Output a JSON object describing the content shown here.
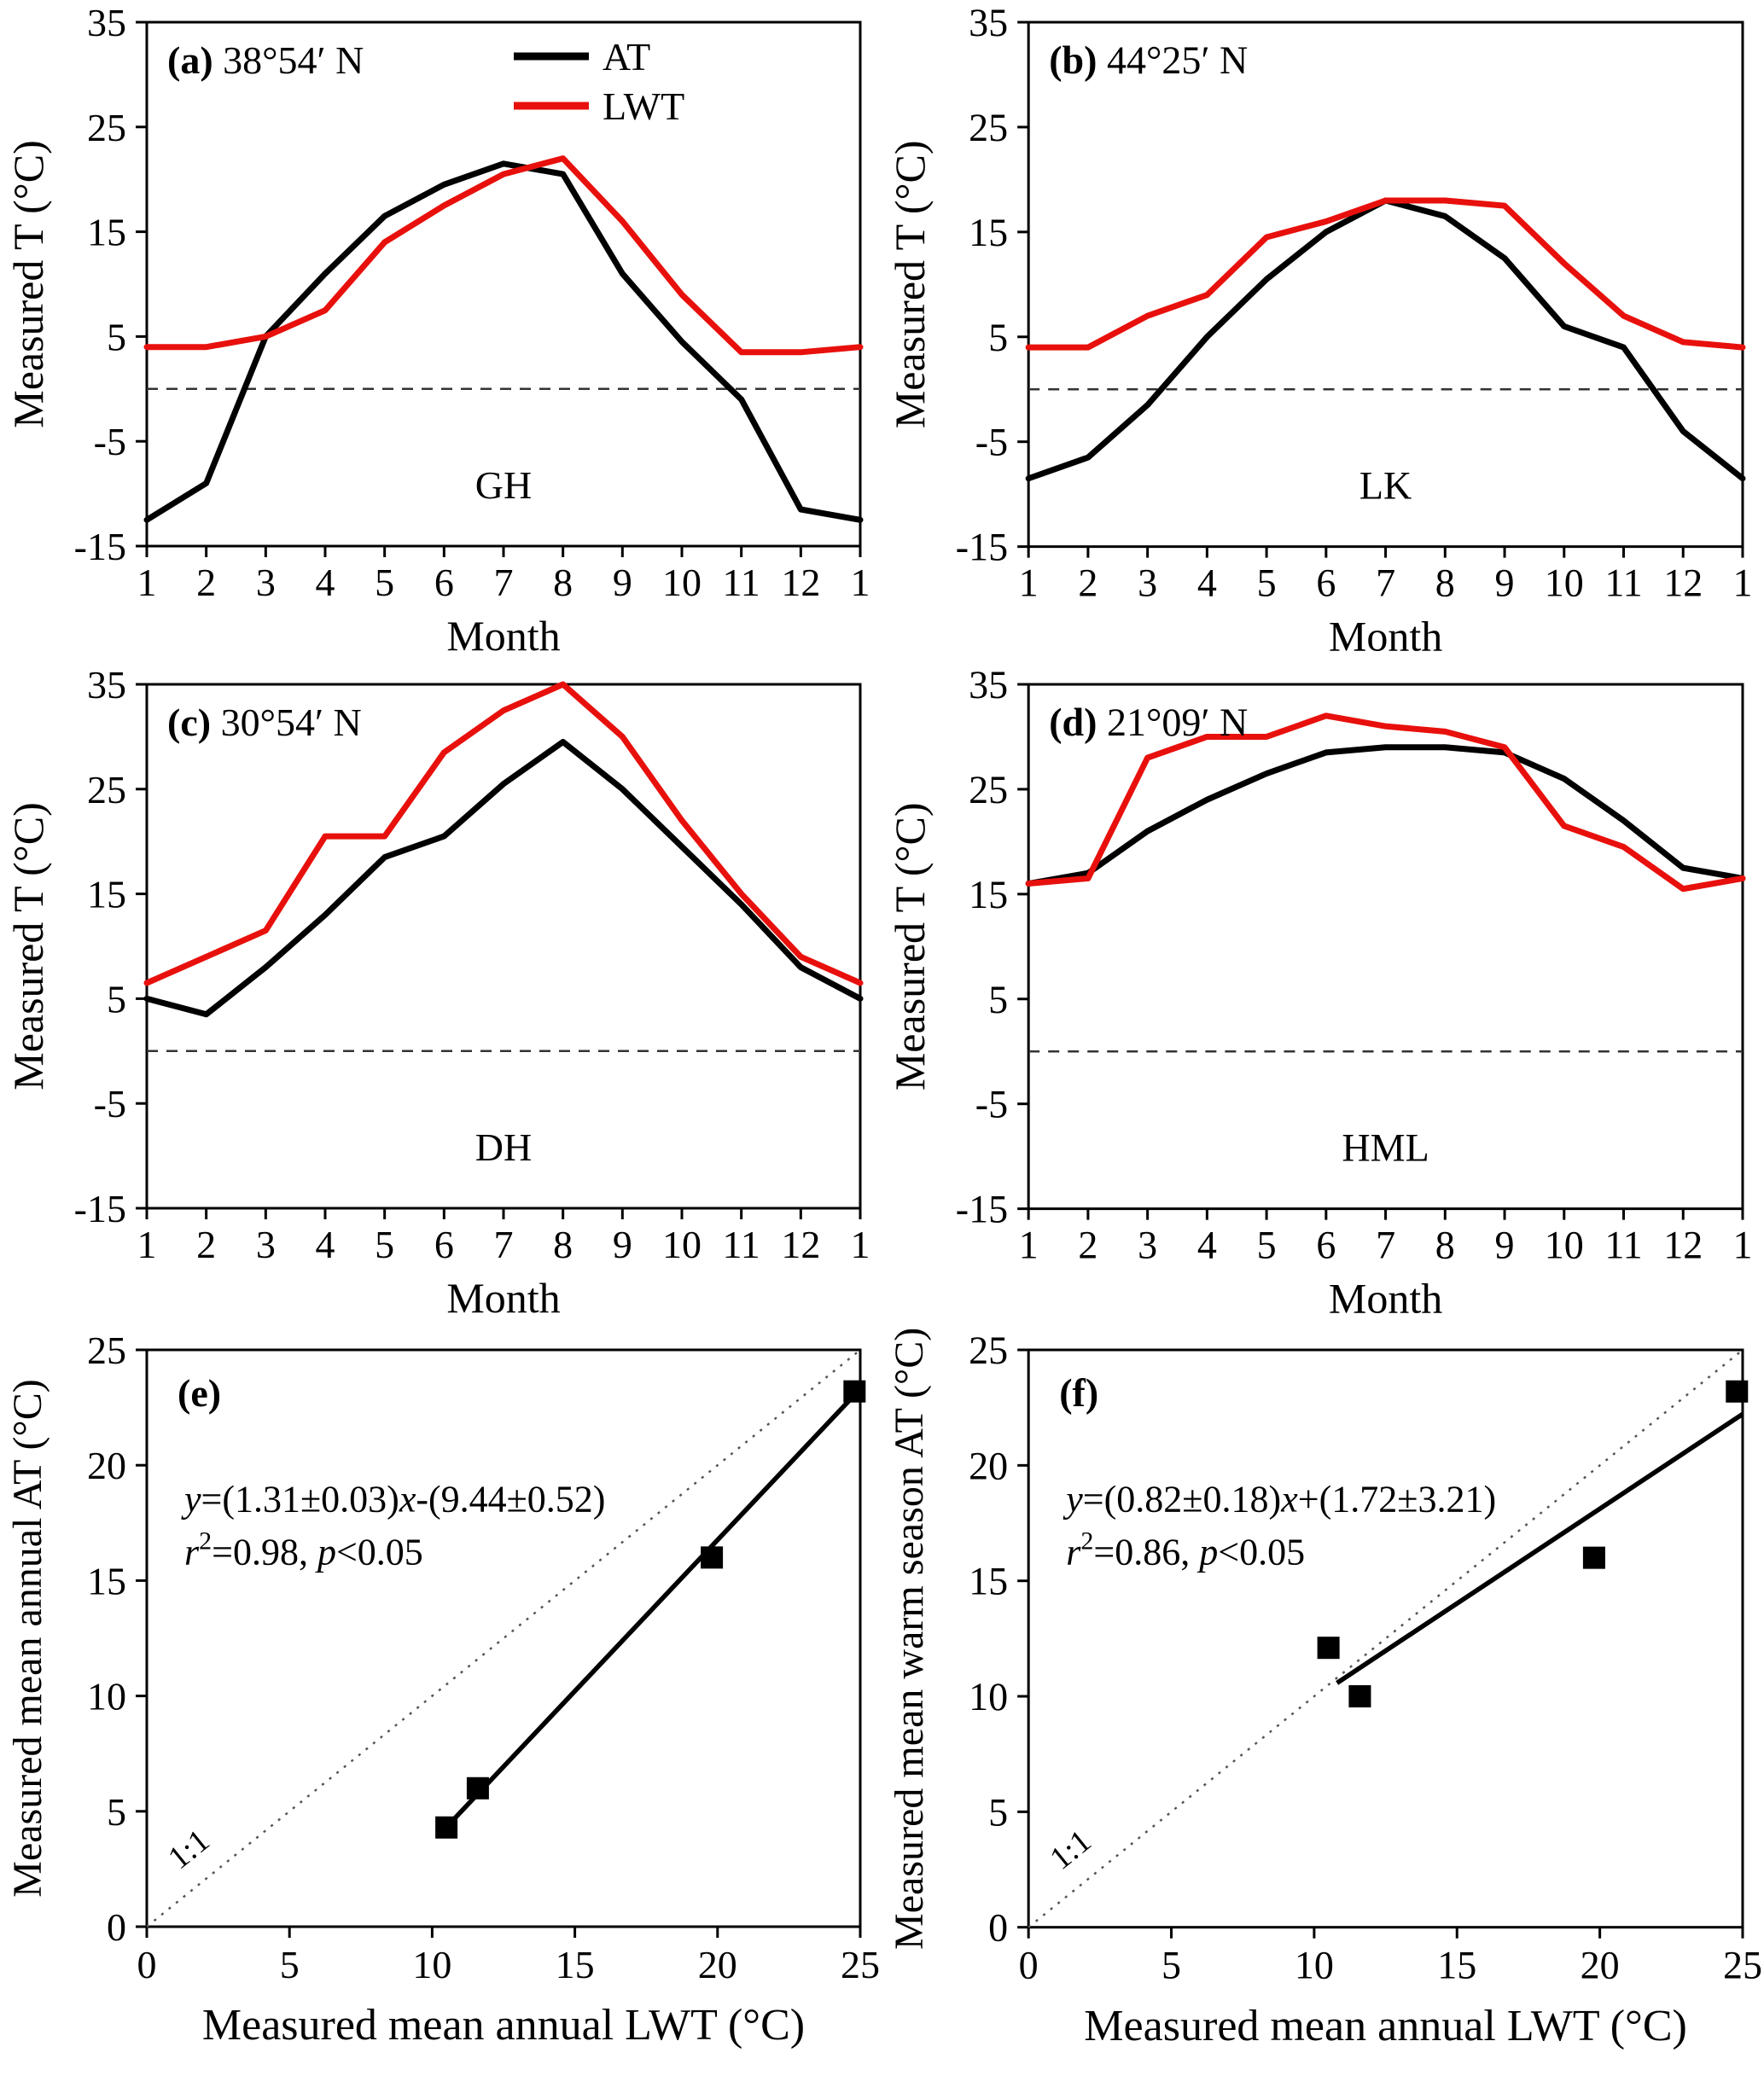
{
  "figure": {
    "legend": {
      "at_label": "AT",
      "lwt_label": "LWT"
    },
    "colors": {
      "at": "#000000",
      "lwt": "#e8100c"
    }
  },
  "chart_data": [
    {
      "id": "a",
      "type": "line",
      "panel_label": "(a)",
      "latitude": "38°54′ N",
      "site": "GH",
      "xlabel": "Month",
      "ylabel": "Measured T (°C)",
      "x": [
        1,
        2,
        3,
        4,
        5,
        6,
        7,
        8,
        9,
        10,
        11,
        12,
        13
      ],
      "x_tick_labels": [
        "1",
        "2",
        "3",
        "4",
        "5",
        "6",
        "7",
        "8",
        "9",
        "10",
        "11",
        "12",
        "1"
      ],
      "ylim": [
        -15,
        35
      ],
      "yticks": [
        -15,
        -5,
        5,
        15,
        25,
        35
      ],
      "zero_line": true,
      "show_legend": true,
      "series": [
        {
          "name": "AT",
          "color": "#000000",
          "values": [
            -12.5,
            -9,
            5,
            11,
            16.5,
            19.5,
            21.5,
            20.5,
            11,
            4.5,
            -1,
            -11.5,
            -12.5
          ]
        },
        {
          "name": "LWT",
          "color": "#e8100c",
          "values": [
            4,
            4,
            5,
            7.5,
            14,
            17.5,
            20.5,
            22,
            16,
            9,
            3.5,
            3.5,
            4
          ]
        }
      ]
    },
    {
      "id": "b",
      "type": "line",
      "panel_label": "(b)",
      "latitude": "44°25′ N",
      "site": "LK",
      "xlabel": "Month",
      "ylabel": "Measured T (°C)",
      "x": [
        1,
        2,
        3,
        4,
        5,
        6,
        7,
        8,
        9,
        10,
        11,
        12,
        13
      ],
      "x_tick_labels": [
        "1",
        "2",
        "3",
        "4",
        "5",
        "6",
        "7",
        "8",
        "9",
        "10",
        "11",
        "12",
        "1"
      ],
      "ylim": [
        -15,
        35
      ],
      "yticks": [
        -15,
        -5,
        5,
        15,
        25,
        35
      ],
      "zero_line": true,
      "show_legend": false,
      "series": [
        {
          "name": "AT",
          "color": "#000000",
          "values": [
            -8.5,
            -6.5,
            -1.5,
            5,
            10.5,
            15,
            18,
            16.5,
            12.5,
            6,
            4,
            -4,
            -8.5
          ]
        },
        {
          "name": "LWT",
          "color": "#e8100c",
          "values": [
            4,
            4,
            7,
            9,
            14.5,
            16,
            18,
            18,
            17.5,
            12,
            7,
            4.5,
            4
          ]
        }
      ]
    },
    {
      "id": "c",
      "type": "line",
      "panel_label": "(c)",
      "latitude": "30°54′ N",
      "site": "DH",
      "xlabel": "Month",
      "ylabel": "Measured T (°C)",
      "x": [
        1,
        2,
        3,
        4,
        5,
        6,
        7,
        8,
        9,
        10,
        11,
        12,
        13
      ],
      "x_tick_labels": [
        "1",
        "2",
        "3",
        "4",
        "5",
        "6",
        "7",
        "8",
        "9",
        "10",
        "11",
        "12",
        "1"
      ],
      "ylim": [
        -15,
        35
      ],
      "yticks": [
        -15,
        -5,
        5,
        15,
        25,
        35
      ],
      "zero_line": true,
      "show_legend": false,
      "series": [
        {
          "name": "AT",
          "color": "#000000",
          "values": [
            5,
            3.5,
            8,
            13,
            18.5,
            20.5,
            25.5,
            29.5,
            25,
            19.5,
            14,
            8,
            5
          ]
        },
        {
          "name": "LWT",
          "color": "#e8100c",
          "values": [
            6.5,
            9,
            11.5,
            20.5,
            20.5,
            28.5,
            32.5,
            35,
            30,
            22,
            15,
            9,
            6.5
          ]
        }
      ]
    },
    {
      "id": "d",
      "type": "line",
      "panel_label": "(d)",
      "latitude": "21°09′ N",
      "site": "HML",
      "xlabel": "Month",
      "ylabel": "Measured T (°C)",
      "x": [
        1,
        2,
        3,
        4,
        5,
        6,
        7,
        8,
        9,
        10,
        11,
        12,
        13
      ],
      "x_tick_labels": [
        "1",
        "2",
        "3",
        "4",
        "5",
        "6",
        "7",
        "8",
        "9",
        "10",
        "11",
        "12",
        "1"
      ],
      "ylim": [
        -15,
        35
      ],
      "yticks": [
        -15,
        -5,
        5,
        15,
        25,
        35
      ],
      "zero_line": true,
      "show_legend": false,
      "series": [
        {
          "name": "AT",
          "color": "#000000",
          "values": [
            16,
            17,
            21,
            24,
            26.5,
            28.5,
            29,
            29,
            28.5,
            26,
            22,
            17.5,
            16.5
          ]
        },
        {
          "name": "LWT",
          "color": "#e8100c",
          "values": [
            16,
            16.5,
            28,
            30,
            30,
            32,
            31,
            30.5,
            29,
            21.5,
            19.5,
            15.5,
            16.5
          ]
        }
      ]
    },
    {
      "id": "e",
      "type": "scatter",
      "panel_label": "(e)",
      "xlabel": "Measured mean annual LWT (°C)",
      "ylabel": "Measured mean annual AT (°C)",
      "xlim": [
        0,
        25
      ],
      "ylim": [
        0,
        25
      ],
      "ticks": [
        0,
        5,
        10,
        15,
        20,
        25
      ],
      "points": [
        [
          10.5,
          4.3
        ],
        [
          11.6,
          6.0
        ],
        [
          19.8,
          16.0
        ],
        [
          24.8,
          23.2
        ]
      ],
      "fit": {
        "slope": 1.31,
        "intercept": -9.44,
        "x_range": [
          10.4,
          24.9
        ]
      },
      "eq": {
        "y": "y",
        "mid": "=(1.31±0.03)",
        "x": "x",
        "post": "-(9.44±0.52)"
      },
      "stats": {
        "r": "r",
        "sup": "2",
        "r_rest": "=0.98, ",
        "p": "p",
        "p_rest": "<0.05"
      },
      "one_to_one_label": "1:1",
      "one_to_one_pos": [
        1.7,
        3.0
      ]
    },
    {
      "id": "f",
      "type": "scatter",
      "panel_label": "(f)",
      "xlabel": "Measured mean annual LWT (°C)",
      "ylabel": "Measured mean warm season AT (°C)",
      "xlim": [
        0,
        25
      ],
      "ylim": [
        0,
        25
      ],
      "ticks": [
        0,
        5,
        10,
        15,
        20,
        25
      ],
      "points": [
        [
          10.5,
          12.1
        ],
        [
          11.6,
          10.0
        ],
        [
          19.8,
          16.0
        ],
        [
          24.8,
          23.2
        ]
      ],
      "fit": {
        "slope": 0.82,
        "intercept": 1.72,
        "x_range": [
          10.8,
          25.0
        ]
      },
      "eq": {
        "y": "y",
        "mid": "=(0.82±0.18)",
        "x": "x",
        "post": "+(1.72±3.21)"
      },
      "stats": {
        "r": "r",
        "sup": "2",
        "r_rest": "=0.86, ",
        "p": "p",
        "p_rest": "<0.05"
      },
      "one_to_one_label": "1:1",
      "one_to_one_pos": [
        1.7,
        3.0
      ]
    }
  ]
}
